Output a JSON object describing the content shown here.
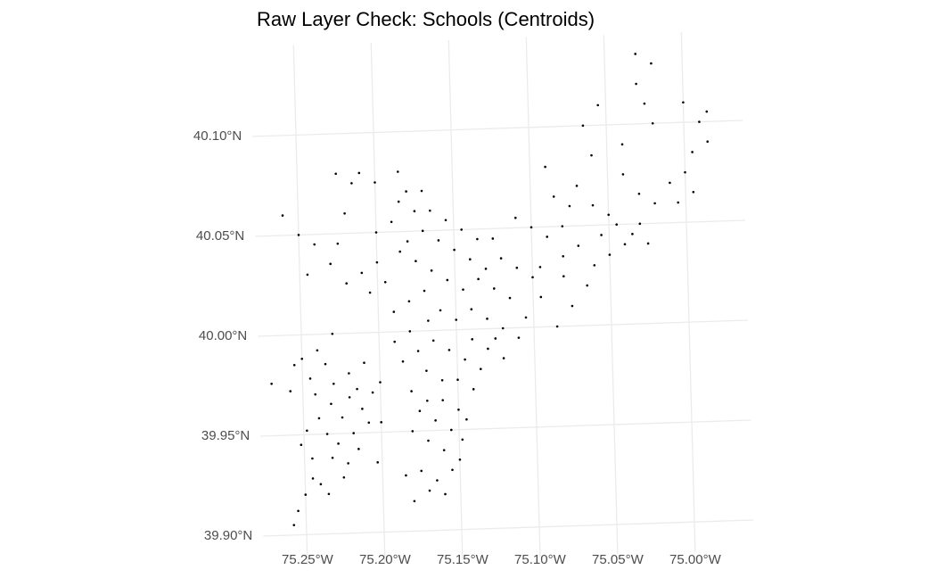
{
  "chart_data": {
    "type": "scatter",
    "title": "Raw Layer Check: Schools (Centroids)",
    "color": "#000000",
    "grid": true,
    "xlim": [
      -75.278,
      -74.962
    ],
    "ylim": [
      39.885,
      40.145
    ],
    "xticks": [
      {
        "value": -75.25,
        "label": "75.25°W"
      },
      {
        "value": -75.2,
        "label": "75.20°W"
      },
      {
        "value": -75.15,
        "label": "75.15°W"
      },
      {
        "value": -75.1,
        "label": "75.10°W"
      },
      {
        "value": -75.05,
        "label": "75.05°W"
      },
      {
        "value": -75.0,
        "label": "75.00°W"
      }
    ],
    "yticks": [
      {
        "value": 39.9,
        "label": "39.90°N"
      },
      {
        "value": 39.95,
        "label": "39.95°N"
      },
      {
        "value": 40.0,
        "label": "40.00°N"
      },
      {
        "value": 40.05,
        "label": "40.05°N"
      },
      {
        "value": 40.1,
        "label": "40.10°N"
      }
    ],
    "x": [
      -75.27,
      -75.255,
      -75.25,
      -75.258,
      -75.245,
      -75.24,
      -75.235,
      -75.23,
      -75.22,
      -75.215,
      -75.212,
      -75.208,
      -75.205,
      -75.225,
      -75.218,
      -75.228,
      -75.235,
      -75.24,
      -75.248,
      -75.252,
      -75.245,
      -75.232,
      -75.222,
      -75.215,
      -75.225,
      -75.24,
      -75.235,
      -75.25,
      -75.255,
      -75.258,
      -75.245,
      -75.2,
      -75.2,
      -75.21,
      -75.22,
      -75.232,
      -75.242,
      -75.203,
      -75.18,
      -75.17,
      -75.165,
      -75.175,
      -75.16,
      -75.185,
      -75.155,
      -75.16,
      -75.17,
      -75.18,
      -75.165,
      -75.155,
      -75.15,
      -75.16,
      -75.17,
      -75.175,
      -75.148,
      -75.15,
      -75.145,
      -75.14,
      -75.15,
      -75.16,
      -75.17,
      -75.18,
      -75.185,
      -75.175,
      -75.165,
      -75.155,
      -75.145,
      -75.135,
      -75.14,
      -75.13,
      -75.12,
      -75.125,
      -75.19,
      -75.18,
      -75.168,
      -75.19,
      -75.18,
      -75.17,
      -75.16,
      -75.15,
      -75.14,
      -75.13,
      -75.12,
      -75.11,
      -75.105,
      -75.115,
      -75.125,
      -75.135,
      -75.145,
      -75.155,
      -75.165,
      -75.175,
      -75.185,
      -75.18,
      -75.17,
      -75.16,
      -75.15,
      -75.14,
      -75.13,
      -75.12,
      -75.11,
      -75.1,
      -75.095,
      -75.155,
      -75.145,
      -75.135,
      -75.125,
      -75.175,
      -75.165,
      -75.185,
      -75.19,
      -75.2,
      -75.2,
      -75.195,
      -75.26,
      -75.25,
      -75.24,
      -75.245,
      -75.23,
      -75.225,
      -75.22,
      -75.21,
      -75.205,
      -75.22,
      -75.215,
      -75.21,
      -75.2,
      -75.225,
      -75.185,
      -75.18,
      -75.17,
      -75.23,
      -75.09,
      -75.085,
      -75.08,
      -75.075,
      -75.07,
      -75.06,
      -75.05,
      -75.045,
      -75.04,
      -75.035,
      -75.03,
      -75.025,
      -75.02,
      -75.03,
      -75.04,
      -75.06,
      -75.065,
      -75.055,
      -75.04,
      -75.03,
      -75.025,
      -75.02,
      -75.02,
      -75.03,
      -75.0,
      -74.99,
      -74.985,
      -74.995,
      -75.0,
      -74.995,
      -75.005,
      -75.01,
      -74.985,
      -75.08,
      -75.09,
      -75.095,
      -75.07,
      -75.06,
      -75.05,
      -75.065,
      -75.075,
      -75.085,
      -75.08,
      -75.1,
      -75.11,
      -75.055
    ],
    "values": [
      39.976,
      39.985,
      39.988,
      39.972,
      39.978,
      39.992,
      39.985,
      39.975,
      39.968,
      39.972,
      39.962,
      39.955,
      39.97,
      39.958,
      39.95,
      39.945,
      39.95,
      39.958,
      39.952,
      39.945,
      39.938,
      39.938,
      39.935,
      39.942,
      39.928,
      39.925,
      39.92,
      39.92,
      39.912,
      39.905,
      39.928,
      39.975,
      39.955,
      39.985,
      39.98,
      39.965,
      39.97,
      39.935,
      39.915,
      39.92,
      39.925,
      39.93,
      39.918,
      39.928,
      39.93,
      39.94,
      39.945,
      39.95,
      39.955,
      39.95,
      39.96,
      39.965,
      39.965,
      39.96,
      39.945,
      39.935,
      39.955,
      39.97,
      39.975,
      39.975,
      39.98,
      39.97,
      39.985,
      39.99,
      39.995,
      39.99,
      39.985,
      39.98,
      39.995,
      39.99,
      39.985,
      39.995,
      39.995,
      40.0,
      40.005,
      40.01,
      40.015,
      40.02,
      40.01,
      40.005,
      40.01,
      40.005,
      40.0,
      39.995,
      40.005,
      40.015,
      40.02,
      40.025,
      40.02,
      40.025,
      40.03,
      40.035,
      40.04,
      40.045,
      40.05,
      40.045,
      40.04,
      40.035,
      40.03,
      40.035,
      40.03,
      40.025,
      40.015,
      40.055,
      40.05,
      40.045,
      40.045,
      40.06,
      40.06,
      40.065,
      40.055,
      40.05,
      40.035,
      40.025,
      40.06,
      40.05,
      40.045,
      40.03,
      40.035,
      40.045,
      40.025,
      40.03,
      40.02,
      40.06,
      40.075,
      40.08,
      40.075,
      40.08,
      40.08,
      40.07,
      40.07,
      40.0,
      40.08,
      40.065,
      40.05,
      40.06,
      40.07,
      40.06,
      40.055,
      40.05,
      40.04,
      40.045,
      40.05,
      40.04,
      40.06,
      40.065,
      40.075,
      40.085,
      40.1,
      40.11,
      40.09,
      40.12,
      40.11,
      40.1,
      40.13,
      40.135,
      40.11,
      40.1,
      40.09,
      40.085,
      40.075,
      40.065,
      40.06,
      40.07,
      40.105,
      40.035,
      40.045,
      40.03,
      40.04,
      40.03,
      40.035,
      40.02,
      40.01,
      40.0,
      40.025,
      40.05,
      40.055,
      40.045
    ]
  }
}
